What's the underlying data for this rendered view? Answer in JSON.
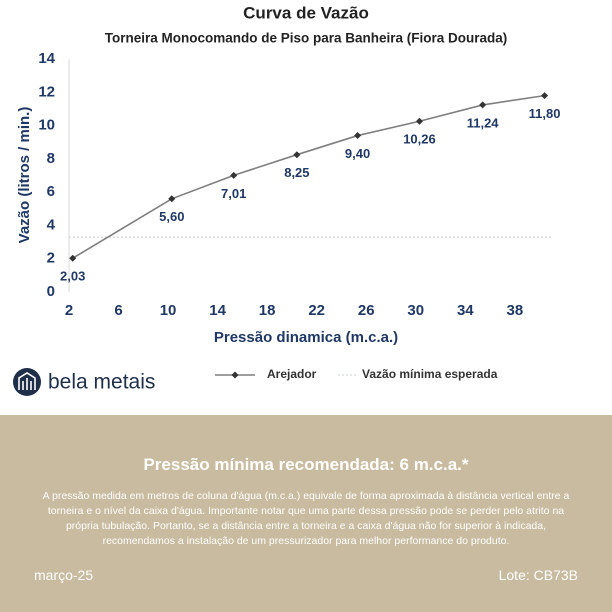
{
  "chart_data": {
    "type": "line",
    "title": "Curva de Vazão",
    "subtitle": "Torneira Monocomando de Piso para Banheira (Fiora Dourada)",
    "x_label": "Pressão dinamica (m.c.a.)",
    "y_label": "Vazão (litros / min.)",
    "x": [
      2.3,
      10.3,
      15.3,
      20.4,
      25.3,
      30.3,
      35.4,
      40.4
    ],
    "series": [
      {
        "name": "Arejador",
        "color": "#7f7f7f",
        "values": [
          2.03,
          5.6,
          7.01,
          8.25,
          9.4,
          10.26,
          11.24,
          11.8
        ],
        "value_labels": [
          "2,03",
          "5,60",
          "7,01",
          "8,25",
          "9,40",
          "10,26",
          "11,24",
          "11,80"
        ]
      }
    ],
    "reference_line": {
      "name": "Vazão mínima esperada",
      "value": 3.3,
      "color": "#c6cccc"
    },
    "xlim": [
      2,
      41
    ],
    "xticks": [
      2,
      6,
      10,
      14,
      18,
      22,
      26,
      30,
      34,
      38
    ],
    "ylim": [
      0,
      14
    ],
    "yticks": [
      0,
      2,
      4,
      6,
      8,
      10,
      12,
      14
    ],
    "grid": false,
    "legend": "bottom"
  },
  "brand": "bela metais",
  "footer": {
    "heading": "Pressão mínima recomendada: 6 m.c.a.*",
    "body": "A pressão medida em metros de coluna d'água (m.c.a.) equivale de forma aproximada à distância vertical entre a torneira e o nível da caixa d'água. Importante notar que uma parte dessa pressão pode se perder pelo atrito na própria tubulação. Portanto, se a distância entre a torneira e a caixa d'água não for superior à indicada, recomendamos a instalação de um pressurizador para melhor performance do produto.",
    "date": "março-25",
    "lot": "Lote: CB73B"
  }
}
